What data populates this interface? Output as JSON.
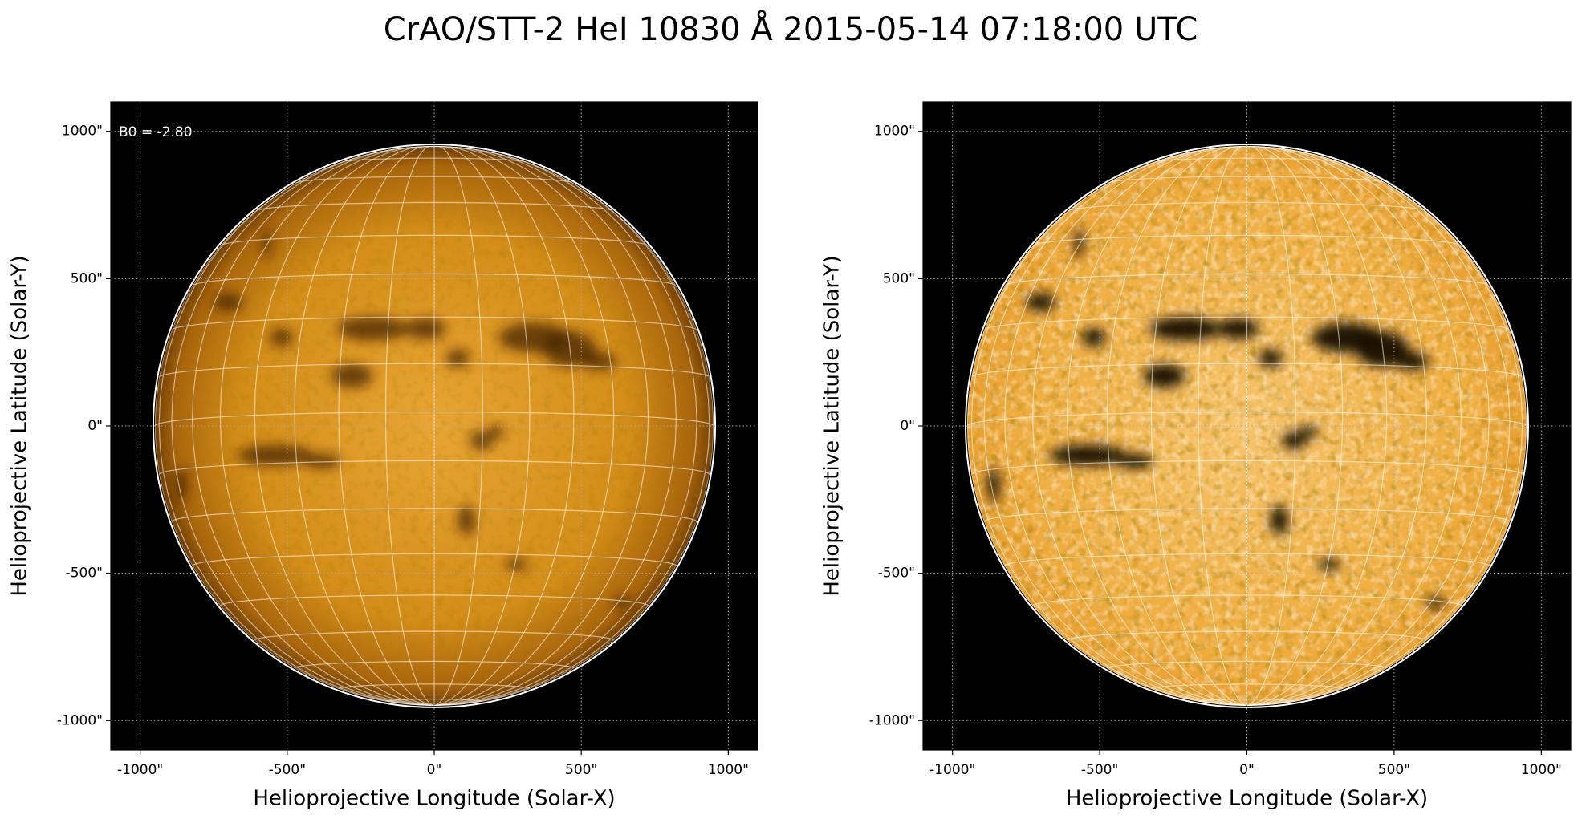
{
  "title": "CrAO/STT-2 HeI 10830 Å 2015-05-14 07:18:00 UTC",
  "chart_data": [
    {
      "type": "image",
      "annotation": "B0 = -2.80",
      "xlabel": "Helioprojective Longitude (Solar-X)",
      "ylabel": "Helioprojective Latitude (Solar-Y)",
      "xlim": [
        -1100,
        1100
      ],
      "ylim": [
        -1100,
        1100
      ],
      "xticks": [
        {
          "value": -1000,
          "label": "-1000\""
        },
        {
          "value": -500,
          "label": "-500\""
        },
        {
          "value": 0,
          "label": "0\""
        },
        {
          "value": 500,
          "label": "500\""
        },
        {
          "value": 1000,
          "label": "1000\""
        }
      ],
      "yticks": [
        {
          "value": -1000,
          "label": "-1000\""
        },
        {
          "value": -500,
          "label": "-500\""
        },
        {
          "value": 0,
          "label": "0\""
        },
        {
          "value": 500,
          "label": "500\""
        },
        {
          "value": 1000,
          "label": "1000\""
        }
      ],
      "grid": true,
      "disk_radius": 950
    },
    {
      "type": "image",
      "xlabel": "Helioprojective Longitude (Solar-X)",
      "ylabel": "Helioprojective Latitude (Solar-Y)",
      "xlim": [
        -1100,
        1100
      ],
      "ylim": [
        -1100,
        1100
      ],
      "xticks": [
        {
          "value": -1000,
          "label": "-1000\""
        },
        {
          "value": -500,
          "label": "-500\""
        },
        {
          "value": 0,
          "label": "0\""
        },
        {
          "value": 500,
          "label": "500\""
        },
        {
          "value": 1000,
          "label": "1000\""
        }
      ],
      "yticks": [
        {
          "value": -1000,
          "label": "-1000\""
        },
        {
          "value": -500,
          "label": "-500\""
        },
        {
          "value": 0,
          "label": "0\""
        },
        {
          "value": 500,
          "label": "500\""
        },
        {
          "value": 1000,
          "label": "1000\""
        }
      ],
      "grid": true,
      "disk_radius": 950
    }
  ]
}
